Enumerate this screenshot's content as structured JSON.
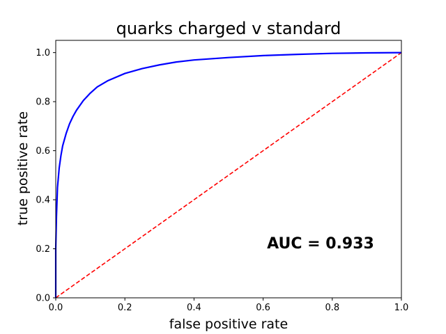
{
  "chart_data": {
    "type": "line",
    "title": "quarks charged v standard",
    "xlabel": "false positive rate",
    "ylabel": "true positive rate",
    "xlim": [
      0.0,
      1.0
    ],
    "ylim": [
      0.0,
      1.05
    ],
    "xticks": [
      0.0,
      0.2,
      0.4,
      0.6,
      0.8,
      1.0
    ],
    "xtick_labels": [
      "0.0",
      "0.2",
      "0.4",
      "0.6",
      "0.8",
      "1.0"
    ],
    "yticks": [
      0.0,
      0.2,
      0.4,
      0.6,
      0.8,
      1.0
    ],
    "ytick_labels": [
      "0.0",
      "0.2",
      "0.4",
      "0.6",
      "0.8",
      "1.0"
    ],
    "grid": false,
    "annotation": "AUC = 0.933",
    "series": [
      {
        "color": "#0000ff",
        "style": "solid",
        "x": [
          0.0,
          0.0,
          0.002,
          0.005,
          0.01,
          0.015,
          0.02,
          0.03,
          0.04,
          0.05,
          0.06,
          0.08,
          0.1,
          0.12,
          0.15,
          0.2,
          0.25,
          0.3,
          0.35,
          0.4,
          0.5,
          0.6,
          0.7,
          0.8,
          0.9,
          1.0
        ],
        "y": [
          0.0,
          0.2,
          0.33,
          0.45,
          0.53,
          0.58,
          0.62,
          0.67,
          0.71,
          0.74,
          0.765,
          0.805,
          0.835,
          0.86,
          0.885,
          0.915,
          0.935,
          0.95,
          0.962,
          0.97,
          0.98,
          0.988,
          0.993,
          0.997,
          0.999,
          1.0
        ]
      },
      {
        "color": "#ff0000",
        "style": "dashed",
        "x": [
          0.0,
          1.0
        ],
        "y": [
          0.0,
          1.0
        ]
      }
    ]
  }
}
